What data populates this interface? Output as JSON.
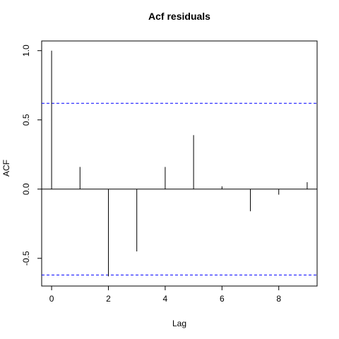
{
  "chart_data": {
    "type": "bar",
    "title": "Acf residuals",
    "xlabel": "Lag",
    "ylabel": "ACF",
    "x": [
      0,
      1,
      2,
      3,
      4,
      5,
      6,
      7,
      8,
      9
    ],
    "values": [
      1.0,
      0.16,
      -0.63,
      -0.45,
      0.16,
      0.39,
      0.02,
      -0.16,
      -0.04,
      0.05
    ],
    "confidence_bounds": [
      0.62,
      -0.62
    ],
    "xlim": [
      -0.35,
      9.35
    ],
    "ylim": [
      -0.7,
      1.07
    ],
    "xticks": [
      0,
      2,
      4,
      6,
      8
    ],
    "yticks": [
      -0.5,
      0.0,
      0.5,
      1.0
    ],
    "ytick_labels": [
      "-0.5",
      "0.0",
      "0.5",
      "1.0"
    ],
    "zero_line": true,
    "grid": false,
    "colors": {
      "bars": "#000000",
      "confidence": "#0000ff",
      "axes": "#000000"
    }
  }
}
